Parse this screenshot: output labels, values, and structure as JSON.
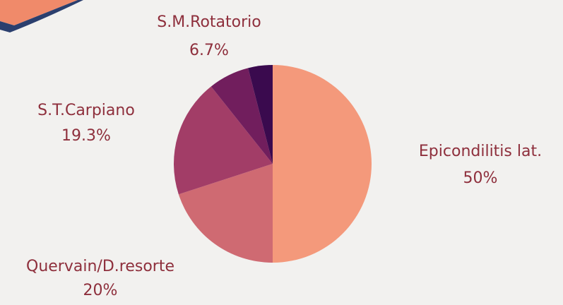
{
  "chart_data": {
    "type": "pie",
    "categories": [
      "Epicondilitis lat.",
      "Quervain/D.resorte",
      "S.T.Carpiano",
      "S.M.Rotatorio",
      null
    ],
    "values": [
      50,
      20,
      19.3,
      6.7,
      4
    ],
    "value_labels": [
      "50%",
      "20%",
      "19.3%",
      "6.7%",
      null
    ],
    "colors": [
      "#f4997b",
      "#cf6a72",
      "#a23d67",
      "#711e5d",
      "#3a0a4e"
    ]
  }
}
